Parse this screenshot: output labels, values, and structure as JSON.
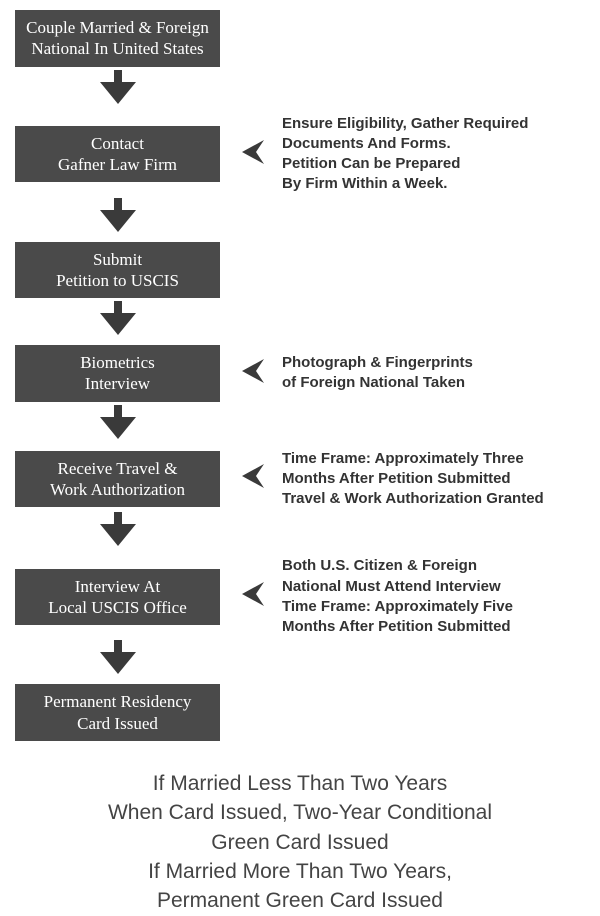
{
  "colors": {
    "box_bg": "#4a4a4a",
    "box_text": "#ffffff",
    "arrow_fill": "#3a3a3a",
    "note_text": "#333333",
    "footer_text": "#444444",
    "page_bg": "#ffffff"
  },
  "steps": [
    {
      "label_line1": "Couple Married & Foreign",
      "label_line2": "National In United States",
      "note": ""
    },
    {
      "label_line1": "Contact",
      "label_line2": "Gafner Law Firm",
      "note": "Ensure Eligibility, Gather Required\nDocuments And Forms.\nPetition Can be Prepared\nBy Firm Within a Week."
    },
    {
      "label_line1": "Submit",
      "label_line2": "Petition to USCIS",
      "note": ""
    },
    {
      "label_line1": "Biometrics",
      "label_line2": "Interview",
      "note": "Photograph & Fingerprints\nof Foreign National Taken"
    },
    {
      "label_line1": "Receive Travel &",
      "label_line2": "Work Authorization",
      "note": "Time Frame: Approximately Three\nMonths After Petition Submitted\nTravel & Work Authorization Granted"
    },
    {
      "label_line1": "Interview At",
      "label_line2": "Local USCIS Office",
      "note": "Both U.S. Citizen & Foreign\nNational Must Attend Interview\nTime Frame: Approximately Five\nMonths After Petition Submitted"
    },
    {
      "label_line1": "Permanent Residency",
      "label_line2": "Card Issued",
      "note": ""
    }
  ],
  "footer": "If Married Less Than Two Years\nWhen Card Issued, Two-Year Conditional\nGreen Card Issued\nIf Married More Than Two Years,\nPermanent Green Card Issued"
}
